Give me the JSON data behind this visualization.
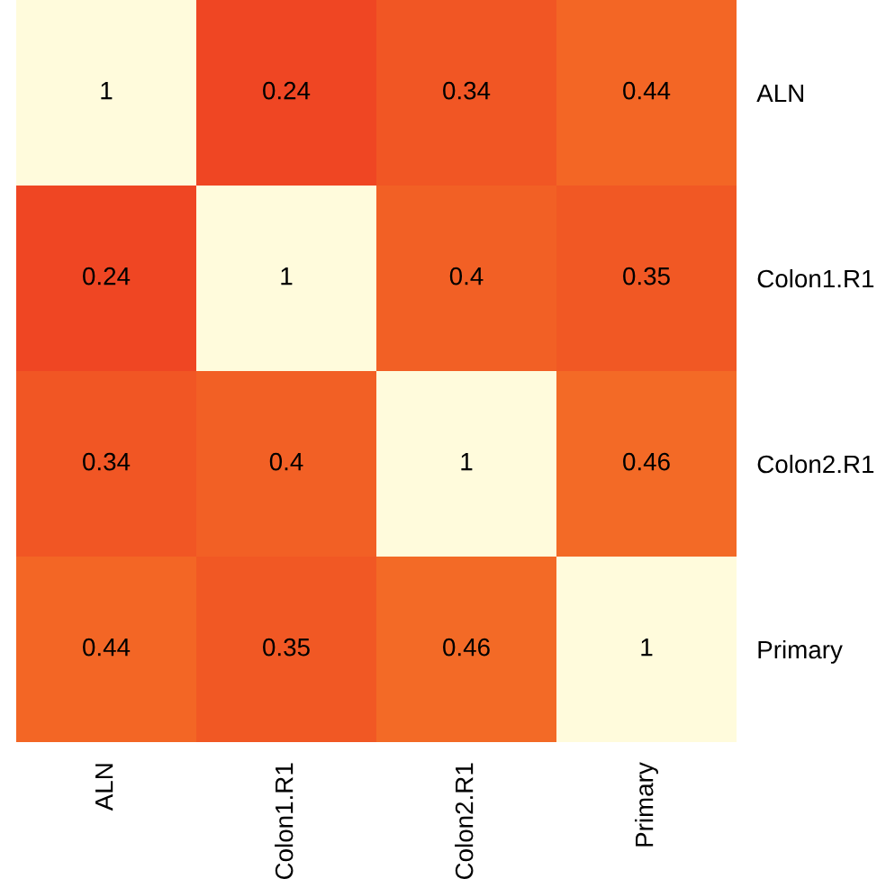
{
  "chart_data": {
    "type": "heatmap",
    "categories": [
      "ALN",
      "Colon1.R1",
      "Colon2.R1",
      "Primary"
    ],
    "y_categories": [
      "ALN",
      "Colon1.R1",
      "Colon2.R1",
      "Primary"
    ],
    "cells": [
      [
        1,
        0.24,
        0.34,
        0.44
      ],
      [
        0.24,
        1,
        0.4,
        0.35
      ],
      [
        0.34,
        0.4,
        1,
        0.46
      ],
      [
        0.44,
        0.35,
        0.46,
        1
      ]
    ],
    "colors": [
      "#ef4623",
      "#f46f26",
      "#f7931e",
      "#fffbdc"
    ],
    "data_labels": true
  }
}
